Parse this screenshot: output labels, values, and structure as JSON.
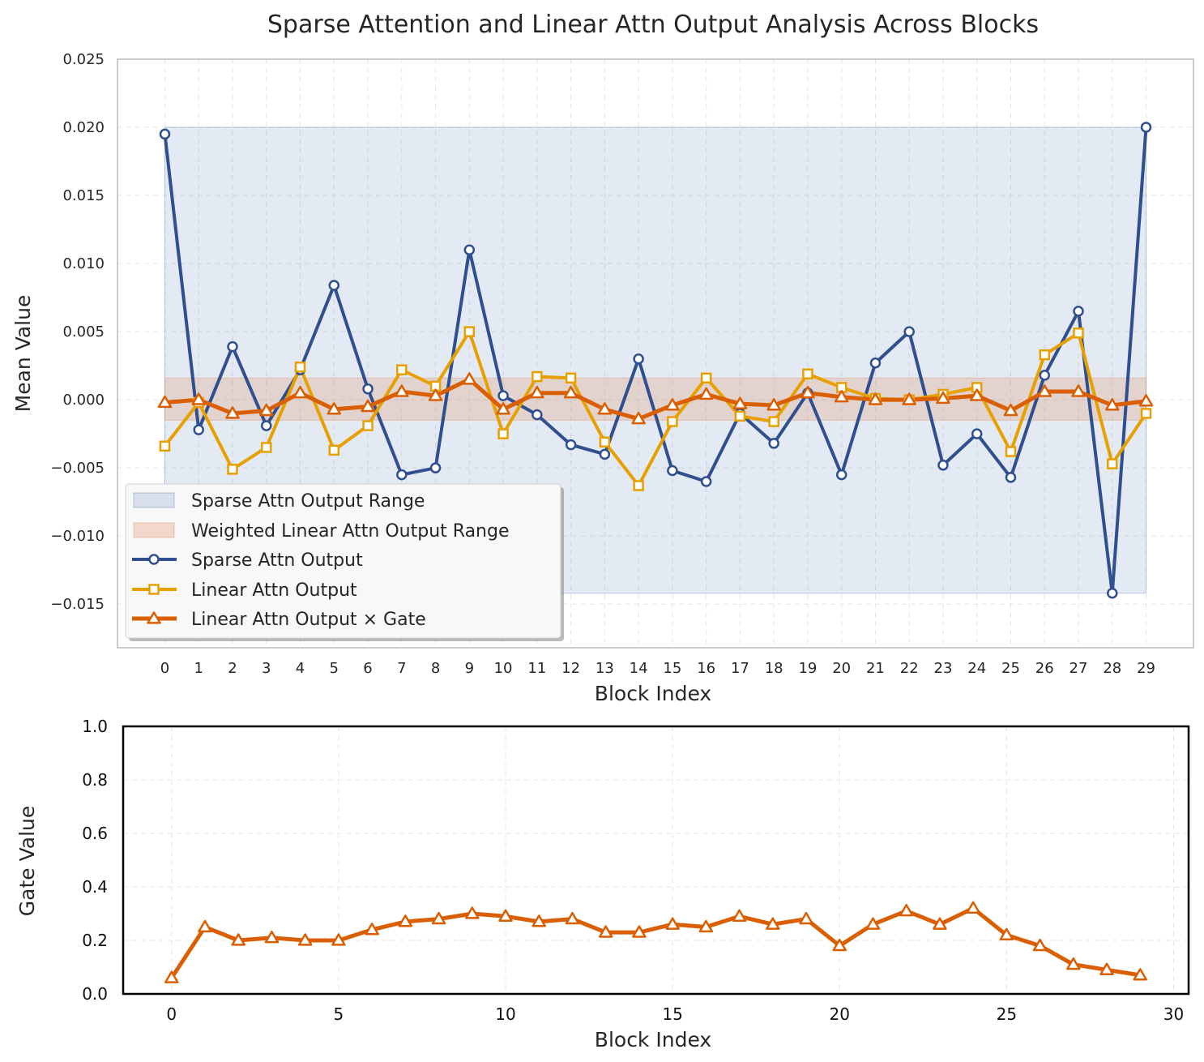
{
  "chart_data": [
    {
      "type": "line",
      "title": "Sparse Attention and Linear Attn Output Analysis Across Blocks",
      "xlabel": "Block Index",
      "ylabel": "Mean Value",
      "xlim": [
        -1.4,
        30.4
      ],
      "ylim": [
        -0.0182,
        0.025
      ],
      "x": [
        0,
        1,
        2,
        3,
        4,
        5,
        6,
        7,
        8,
        9,
        10,
        11,
        12,
        13,
        14,
        15,
        16,
        17,
        18,
        19,
        20,
        21,
        22,
        23,
        24,
        25,
        26,
        27,
        28,
        29
      ],
      "x_tick_labels": [
        "0",
        "1",
        "2",
        "3",
        "4",
        "5",
        "6",
        "7",
        "8",
        "9",
        "10",
        "11",
        "12",
        "13",
        "14",
        "15",
        "16",
        "17",
        "18",
        "19",
        "20",
        "21",
        "22",
        "23",
        "24",
        "25",
        "26",
        "27",
        "28",
        "29"
      ],
      "y_ticks": [
        0.025,
        0.02,
        0.015,
        0.01,
        0.005,
        0.0,
        -0.005,
        -0.01,
        -0.015
      ],
      "y_tick_labels": [
        "0.025",
        "0.020",
        "0.015",
        "0.010",
        "0.005",
        "0.000",
        "−0.005",
        "−0.010",
        "−0.015"
      ],
      "grid": true,
      "legend_position": "lower-left",
      "bands": [
        {
          "name": "Sparse Attn Output Range",
          "color": "#4c72b0",
          "x_range": [
            0,
            29
          ],
          "y_range": [
            -0.0142,
            0.02
          ]
        },
        {
          "name": "Weighted Linear Attn Output Range",
          "color": "#dd8452",
          "x_range": [
            0,
            29
          ],
          "y_range": [
            -0.0015,
            0.0016
          ]
        }
      ],
      "series": [
        {
          "name": "Sparse Attn Output",
          "color": "#2f4f8f",
          "marker": "circle",
          "values": [
            0.0195,
            -0.0022,
            0.0039,
            -0.0019,
            0.0022,
            0.0084,
            0.0008,
            -0.0055,
            -0.005,
            0.011,
            0.0003,
            -0.0011,
            -0.0033,
            -0.004,
            0.003,
            -0.0052,
            -0.006,
            -0.001,
            -0.0032,
            0.0005,
            -0.0055,
            0.0027,
            0.005,
            -0.0048,
            -0.0025,
            -0.0057,
            0.0018,
            0.0065,
            -0.0142,
            0.02
          ]
        },
        {
          "name": "Linear Attn Output",
          "color": "#e6a100",
          "marker": "square",
          "values": [
            -0.0034,
            -0.0002,
            -0.0051,
            -0.0035,
            0.0024,
            -0.0037,
            -0.0019,
            0.0022,
            0.001,
            0.005,
            -0.0025,
            0.0017,
            0.0016,
            -0.0031,
            -0.0063,
            -0.0016,
            0.0016,
            -0.0012,
            -0.0016,
            0.0019,
            0.0009,
            0.0001,
            0.0,
            0.0004,
            0.0009,
            -0.0038,
            0.0033,
            0.0049,
            -0.0047,
            -0.001
          ]
        },
        {
          "name": "Linear Attn Output × Gate",
          "color": "#d95f02",
          "marker": "triangle",
          "values": [
            -0.0002,
            0.0,
            -0.001,
            -0.0008,
            0.0005,
            -0.0007,
            -0.0005,
            0.0006,
            0.0003,
            0.0015,
            -0.0007,
            0.0005,
            0.0005,
            -0.0007,
            -0.0014,
            -0.0004,
            0.0004,
            -0.0003,
            -0.0004,
            0.0005,
            0.0002,
            0.0,
            0.0,
            0.0001,
            0.0003,
            -0.0008,
            0.0006,
            0.0006,
            -0.0004,
            -0.0001
          ]
        }
      ]
    },
    {
      "type": "line",
      "title": "",
      "xlabel": "Block Index",
      "ylabel": "Gate Value",
      "xlim": [
        -1.45,
        30.45
      ],
      "ylim": [
        0.0,
        1.0
      ],
      "x": [
        0,
        1,
        2,
        3,
        4,
        5,
        6,
        7,
        8,
        9,
        10,
        11,
        12,
        13,
        14,
        15,
        16,
        17,
        18,
        19,
        20,
        21,
        22,
        23,
        24,
        25,
        26,
        27,
        28,
        29
      ],
      "x_ticks": [
        0,
        5,
        10,
        15,
        20,
        25,
        30
      ],
      "x_tick_labels": [
        "0",
        "5",
        "10",
        "15",
        "20",
        "25",
        "30"
      ],
      "y_ticks": [
        0.0,
        0.2,
        0.4,
        0.6,
        0.8,
        1.0
      ],
      "y_tick_labels": [
        "0.0",
        "0.2",
        "0.4",
        "0.6",
        "0.8",
        "1.0"
      ],
      "grid": true,
      "series": [
        {
          "name": "Gate",
          "color": "#d95f02",
          "marker": "triangle",
          "values": [
            0.06,
            0.25,
            0.2,
            0.21,
            0.2,
            0.2,
            0.24,
            0.27,
            0.28,
            0.3,
            0.29,
            0.27,
            0.28,
            0.23,
            0.23,
            0.26,
            0.25,
            0.29,
            0.26,
            0.28,
            0.18,
            0.26,
            0.31,
            0.26,
            0.32,
            0.22,
            0.18,
            0.11,
            0.09,
            0.07
          ]
        }
      ]
    }
  ]
}
